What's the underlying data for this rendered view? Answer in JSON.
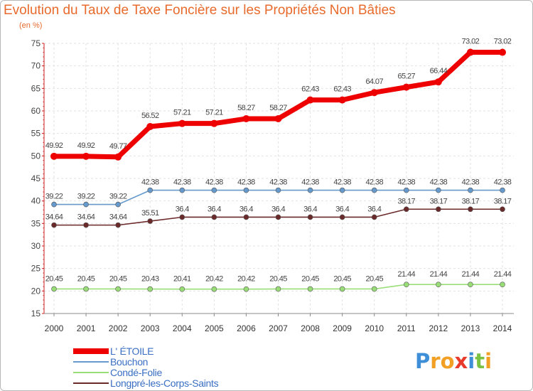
{
  "chart_data": {
    "type": "line",
    "title": "Evolution du Taux de Taxe Foncière sur les Propriétés Non Bâties",
    "ylabel": "(en %)",
    "xlabel": "",
    "ylim": [
      15,
      75
    ],
    "yticks": [
      15,
      20,
      25,
      30,
      35,
      40,
      45,
      50,
      55,
      60,
      65,
      70,
      75
    ],
    "grid": true,
    "legend_position": "bottom-left",
    "x": [
      "2000",
      "2001",
      "2002",
      "2003",
      "2004",
      "2005",
      "2006",
      "2007",
      "2008",
      "2009",
      "2010",
      "2011",
      "2012",
      "2013",
      "2014"
    ],
    "series": [
      {
        "name": "L' ÉTOILE",
        "color": "#ee0000",
        "values": [
          49.92,
          49.92,
          49.77,
          56.52,
          57.21,
          57.21,
          58.27,
          58.27,
          62.43,
          62.43,
          64.07,
          65.27,
          66.44,
          73.02,
          73.02
        ],
        "labels": [
          "49.92",
          "49.92",
          "49.77",
          "56.52",
          "57.21",
          "57.21",
          "58.27",
          "58.27",
          "62.43",
          "62.43",
          "64.07",
          "65.27",
          "66.44",
          "73.02",
          "73.02"
        ]
      },
      {
        "name": "Bouchon",
        "color": "#6699cc",
        "values": [
          39.22,
          39.22,
          39.22,
          42.38,
          42.38,
          42.38,
          42.38,
          42.38,
          42.38,
          42.38,
          42.38,
          42.38,
          42.38,
          42.38,
          42.38
        ],
        "labels": [
          "39.22",
          "39.22",
          "39.22",
          "42.38",
          "42.38",
          "42.38",
          "42.38",
          "42.38",
          "42.38",
          "42.38",
          "42.38",
          "42.38",
          "42.38",
          "42.38",
          "42.38"
        ]
      },
      {
        "name": "Condé-Folie",
        "color": "#99dd77",
        "values": [
          20.45,
          20.45,
          20.45,
          20.43,
          20.41,
          20.42,
          20.42,
          20.45,
          20.45,
          20.45,
          20.45,
          21.44,
          21.44,
          21.44,
          21.44
        ],
        "labels": [
          "20.45",
          "20.45",
          "20.45",
          "20.43",
          "20.41",
          "20.42",
          "20.42",
          "20.45",
          "20.45",
          "20.45",
          "20.45",
          "21.44",
          "21.44",
          "21.44",
          "21.44"
        ]
      },
      {
        "name": "Longpré-les-Corps-Saints",
        "color": "#6b2a2a",
        "values": [
          34.64,
          34.64,
          34.64,
          35.51,
          36.4,
          36.4,
          36.4,
          36.4,
          36.4,
          36.4,
          36.4,
          38.17,
          38.17,
          38.17,
          38.17
        ],
        "labels": [
          "34.64",
          "34.64",
          "34.64",
          "35.51",
          "36.4",
          "36.4",
          "36.4",
          "36.4",
          "36.4",
          "36.4",
          "36.4",
          "38.17",
          "38.17",
          "38.17",
          "38.17"
        ]
      }
    ]
  },
  "brand": {
    "name": "Proxiti",
    "letters": [
      {
        "ch": "P",
        "color": "#3e8fd8"
      },
      {
        "ch": "r",
        "color": "#f2a024"
      },
      {
        "ch": "o",
        "color": "#f2a024"
      },
      {
        "ch": "x",
        "color": "#e83a2a"
      },
      {
        "ch": "i",
        "color": "#3e8fd8"
      },
      {
        "ch": "t",
        "color": "#7cc242"
      },
      {
        "ch": "i",
        "color": "#f2a024"
      }
    ]
  }
}
